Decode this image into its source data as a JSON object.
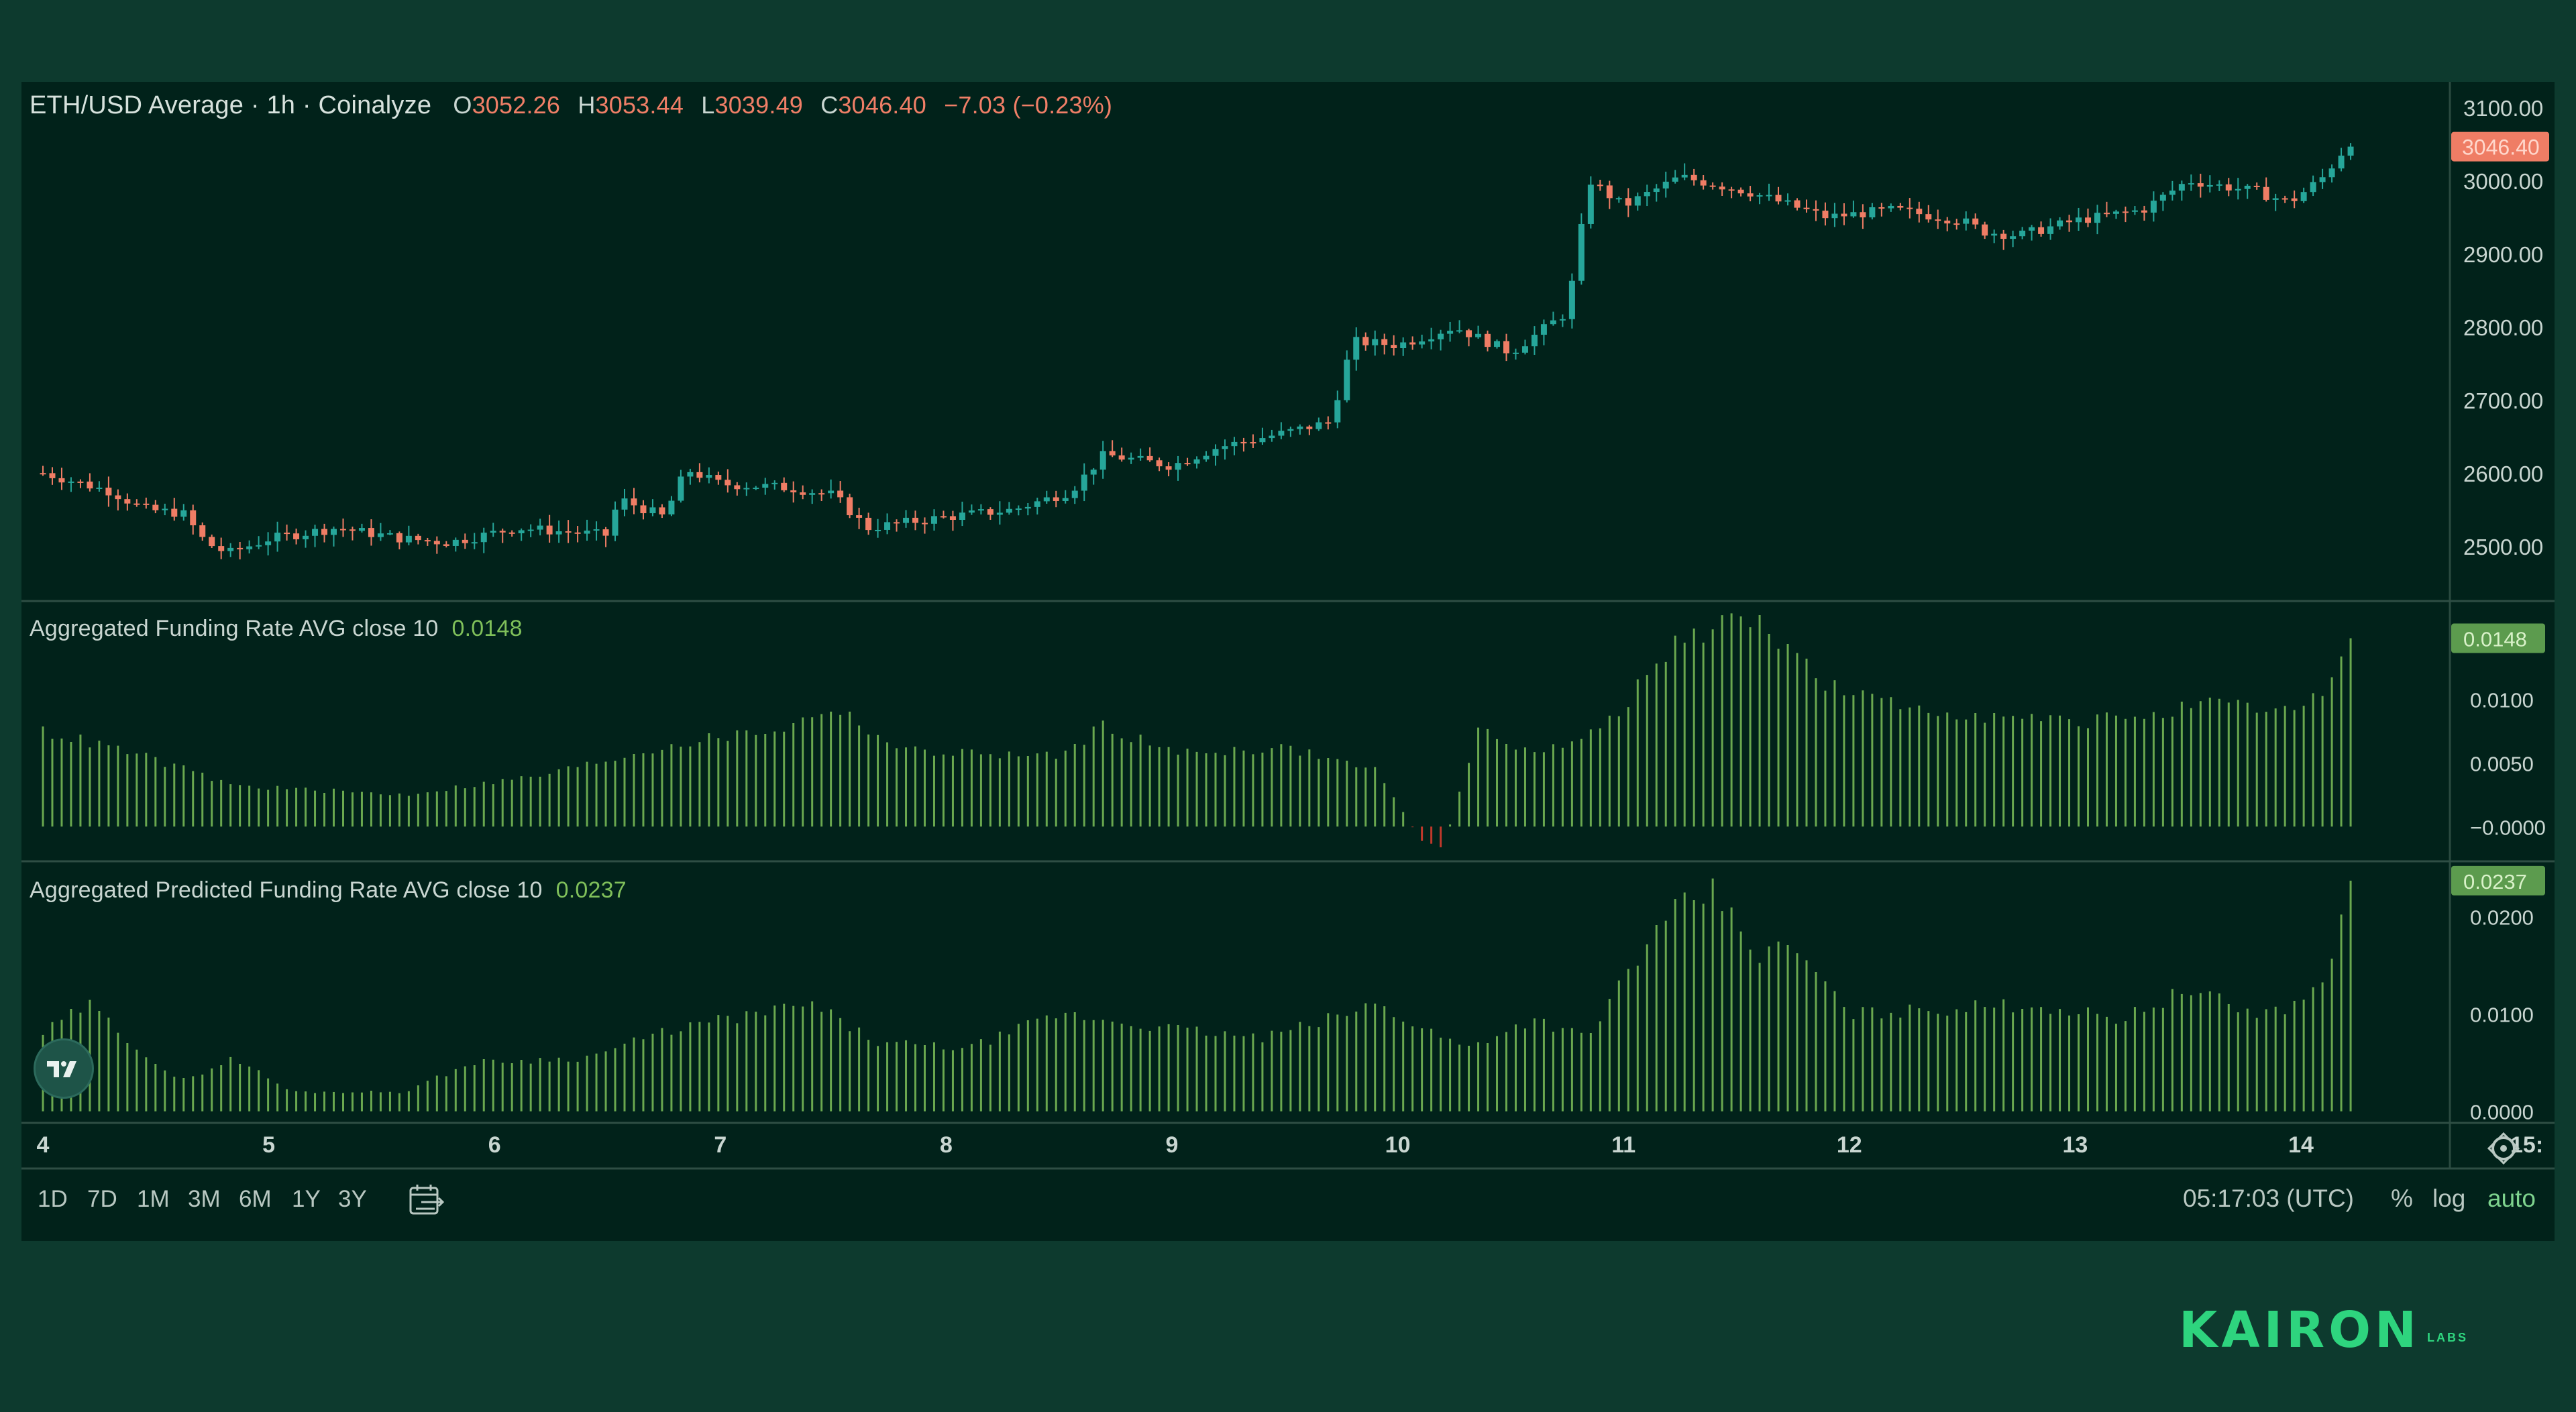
{
  "header": {
    "symbol": "ETH/USD Average · 1h · Coinalyze",
    "open_label": "O",
    "open": "3052.26",
    "high_label": "H",
    "high": "3053.44",
    "low_label": "L",
    "low": "3039.49",
    "close_label": "C",
    "close": "3046.40",
    "change": "−7.03 (−0.23%)"
  },
  "indicators": [
    {
      "name": "Aggregated Funding Rate AVG close 10",
      "value": "0.0148"
    },
    {
      "name": "Aggregated Predicted Funding Rate AVG close 10",
      "value": "0.0237"
    }
  ],
  "toolbar": {
    "ranges": [
      "1D",
      "7D",
      "1M",
      "3M",
      "6M",
      "1Y",
      "3Y"
    ],
    "clock": "05:17:03 (UTC)",
    "percent_label": "%",
    "log_label": "log",
    "auto_label": "auto"
  },
  "brand": {
    "name": "KAIRON",
    "sub": "LABS"
  },
  "colors": {
    "background": "#0d3a2e",
    "panel": "#01221a",
    "up": "#26a69a",
    "down": "#ef7d65",
    "volume_green": "#6aa84f",
    "volume_red": "#c0392b"
  },
  "chart_data": [
    {
      "type": "candlestick",
      "title": "ETH/USD Average · 1h · Coinalyze",
      "x_ticks": [
        "4",
        "5",
        "6",
        "7",
        "8",
        "9",
        "10",
        "11",
        "12",
        "13",
        "14",
        "15:"
      ],
      "y_ticks": [
        2500,
        2600,
        2700,
        2800,
        2900,
        3000,
        3100
      ],
      "y_tick_labels": [
        "2500.00",
        "2600.00",
        "2700.00",
        "2800.00",
        "2900.00",
        "3000.00",
        "3100.00"
      ],
      "ylim": [
        2425,
        3135
      ],
      "last_price": "3046.40",
      "close_path": [
        [
          4.0,
          2600
        ],
        [
          4.3,
          2575
        ],
        [
          4.45,
          2550
        ],
        [
          4.62,
          2545
        ],
        [
          4.72,
          2505
        ],
        [
          4.82,
          2490
        ],
        [
          5.0,
          2510
        ],
        [
          5.3,
          2525
        ],
        [
          5.6,
          2510
        ],
        [
          5.8,
          2505
        ],
        [
          6.1,
          2525
        ],
        [
          6.3,
          2520
        ],
        [
          6.5,
          2515
        ],
        [
          6.55,
          2565
        ],
        [
          6.75,
          2540
        ],
        [
          6.85,
          2605
        ],
        [
          7.0,
          2585
        ],
        [
          7.3,
          2580
        ],
        [
          7.5,
          2570
        ],
        [
          7.65,
          2525
        ],
        [
          8.0,
          2540
        ],
        [
          8.3,
          2550
        ],
        [
          8.55,
          2575
        ],
        [
          8.7,
          2625
        ],
        [
          9.0,
          2610
        ],
        [
          9.2,
          2635
        ],
        [
          9.5,
          2655
        ],
        [
          9.7,
          2670
        ],
        [
          9.8,
          2780
        ],
        [
          10.0,
          2775
        ],
        [
          10.25,
          2800
        ],
        [
          10.5,
          2765
        ],
        [
          10.75,
          2820
        ],
        [
          10.85,
          3000
        ],
        [
          11.0,
          2965
        ],
        [
          11.25,
          3005
        ],
        [
          11.55,
          2985
        ],
        [
          11.9,
          2950
        ],
        [
          12.2,
          2960
        ],
        [
          12.5,
          2945
        ],
        [
          12.6,
          2930
        ],
        [
          12.75,
          2925
        ],
        [
          13.0,
          2945
        ],
        [
          13.3,
          2960
        ],
        [
          13.5,
          3000
        ],
        [
          13.8,
          2985
        ],
        [
          13.95,
          2970
        ],
        [
          14.1,
          3005
        ],
        [
          14.2,
          3046.4
        ]
      ]
    },
    {
      "type": "bar",
      "title": "Aggregated Funding Rate AVG close 10",
      "y_ticks": [
        0,
        0.005,
        0.01
      ],
      "y_tick_labels": [
        "−0.0000",
        "0.0050",
        "0.0100"
      ],
      "ylim": [
        -0.0022,
        0.0172
      ],
      "last_value": "0.0148",
      "value_path": [
        [
          4.0,
          0.0075
        ],
        [
          4.4,
          0.0058
        ],
        [
          4.85,
          0.0032
        ],
        [
          5.6,
          0.0025
        ],
        [
          6.2,
          0.004
        ],
        [
          6.8,
          0.0065
        ],
        [
          7.3,
          0.0078
        ],
        [
          7.5,
          0.0095
        ],
        [
          7.8,
          0.006
        ],
        [
          8.5,
          0.0055
        ],
        [
          8.7,
          0.008
        ],
        [
          9.0,
          0.0058
        ],
        [
          9.5,
          0.0062
        ],
        [
          9.9,
          0.0045
        ],
        [
          10.1,
          -0.001
        ],
        [
          10.2,
          -0.0018
        ],
        [
          10.35,
          0.0075
        ],
        [
          10.6,
          0.006
        ],
        [
          10.8,
          0.0065
        ],
        [
          11.0,
          0.0095
        ],
        [
          11.25,
          0.0148
        ],
        [
          11.6,
          0.0165
        ],
        [
          11.9,
          0.011
        ],
        [
          12.2,
          0.0095
        ],
        [
          12.5,
          0.009
        ],
        [
          12.7,
          0.0085
        ],
        [
          13.0,
          0.0082
        ],
        [
          13.4,
          0.009
        ],
        [
          13.6,
          0.0095
        ],
        [
          14.0,
          0.009
        ],
        [
          14.15,
          0.012
        ],
        [
          14.22,
          0.0148
        ]
      ]
    },
    {
      "type": "bar",
      "title": "Aggregated Predicted Funding Rate AVG close 10",
      "y_ticks": [
        0,
        0.01,
        0.02
      ],
      "y_tick_labels": [
        "0.0000",
        "0.0100",
        "0.0200"
      ],
      "ylim": [
        -0.0005,
        0.025
      ],
      "last_value": "0.0237",
      "value_path": [
        [
          4.0,
          0.008
        ],
        [
          4.2,
          0.011
        ],
        [
          4.6,
          0.003
        ],
        [
          4.85,
          0.0055
        ],
        [
          5.1,
          0.002
        ],
        [
          5.6,
          0.002
        ],
        [
          5.9,
          0.005
        ],
        [
          6.4,
          0.0055
        ],
        [
          6.8,
          0.0085
        ],
        [
          7.4,
          0.011
        ],
        [
          7.7,
          0.007
        ],
        [
          8.1,
          0.0065
        ],
        [
          8.5,
          0.01
        ],
        [
          9.0,
          0.0085
        ],
        [
          9.4,
          0.0075
        ],
        [
          9.7,
          0.0095
        ],
        [
          9.9,
          0.011
        ],
        [
          10.3,
          0.0065
        ],
        [
          10.6,
          0.0095
        ],
        [
          10.85,
          0.0075
        ],
        [
          11.0,
          0.014
        ],
        [
          11.25,
          0.021
        ],
        [
          11.4,
          0.0225
        ],
        [
          11.6,
          0.016
        ],
        [
          11.75,
          0.017
        ],
        [
          12.0,
          0.01
        ],
        [
          12.4,
          0.0105
        ],
        [
          12.8,
          0.011
        ],
        [
          13.2,
          0.0095
        ],
        [
          13.5,
          0.0125
        ],
        [
          13.8,
          0.01
        ],
        [
          14.0,
          0.011
        ],
        [
          14.15,
          0.016
        ],
        [
          14.22,
          0.0237
        ]
      ]
    }
  ]
}
